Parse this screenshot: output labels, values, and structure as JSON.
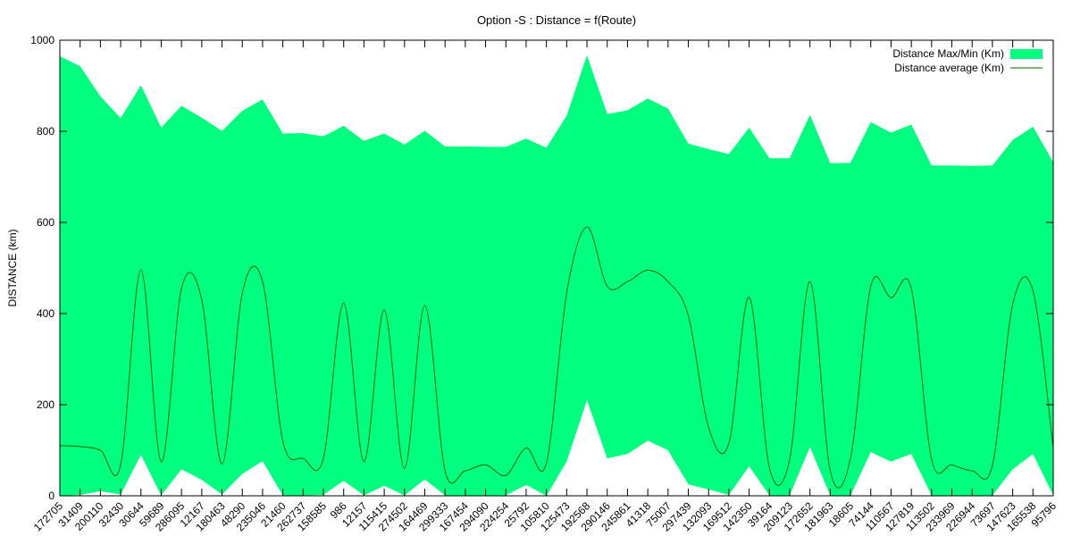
{
  "chart_data": {
    "type": "area",
    "title": "Option -S : Distance = f(Route)",
    "xlabel": "",
    "ylabel": "DISTANCE (km)",
    "ylim": [
      0,
      1000
    ],
    "yticks": [
      0,
      200,
      400,
      600,
      800,
      1000
    ],
    "legend_position": "top-right",
    "grid": false,
    "colors": {
      "band": "#00ff7f",
      "average": "#006400"
    },
    "categories": [
      "172705",
      "31409",
      "200110",
      "32430",
      "30644",
      "59689",
      "286095",
      "12167",
      "180463",
      "48290",
      "235046",
      "21460",
      "262737",
      "158585",
      "986",
      "12157",
      "115415",
      "274502",
      "164469",
      "299333",
      "167454",
      "294090",
      "224254",
      "25792",
      "105810",
      "125473",
      "192568",
      "290146",
      "245861",
      "41318",
      "75007",
      "297439",
      "132093",
      "169512",
      "142350",
      "39164",
      "209123",
      "172652",
      "181963",
      "18605",
      "74144",
      "110567",
      "127819",
      "113502",
      "233969",
      "226944",
      "73697",
      "147623",
      "165538",
      "95796"
    ],
    "series": [
      {
        "name": "Distance Max/Min (Km)",
        "kind": "band",
        "max": [
          965,
          943,
          877,
          829,
          901,
          808,
          856,
          830,
          801,
          845,
          870,
          795,
          796,
          789,
          812,
          779,
          795,
          771,
          801,
          767,
          767,
          766,
          766,
          784,
          764,
          834,
          967,
          838,
          846,
          872,
          850,
          773,
          761,
          750,
          808,
          741,
          741,
          836,
          730,
          731,
          820,
          797,
          815,
          725,
          725,
          724,
          725,
          781,
          810,
          732
        ],
        "min": [
          0,
          2,
          10,
          3,
          90,
          1,
          58,
          35,
          3,
          48,
          76,
          1,
          1,
          2,
          33,
          1,
          22,
          1,
          36,
          1,
          1,
          0,
          1,
          24,
          0,
          75,
          210,
          82,
          92,
          121,
          100,
          25,
          14,
          2,
          65,
          1,
          1,
          107,
          1,
          1,
          96,
          75,
          92,
          1,
          1,
          1,
          1,
          58,
          92,
          1
        ]
      },
      {
        "name": "Distance average (Km)",
        "kind": "line",
        "values": [
          110,
          108,
          100,
          68,
          496,
          75,
          455,
          430,
          70,
          445,
          470,
          120,
          82,
          82,
          423,
          75,
          408,
          60,
          418,
          55,
          55,
          68,
          45,
          105,
          72,
          445,
          590,
          460,
          470,
          495,
          470,
          395,
          150,
          115,
          436,
          62,
          80,
          470,
          55,
          82,
          460,
          435,
          455,
          80,
          68,
          55,
          67,
          420,
          450,
          105
        ]
      }
    ]
  }
}
